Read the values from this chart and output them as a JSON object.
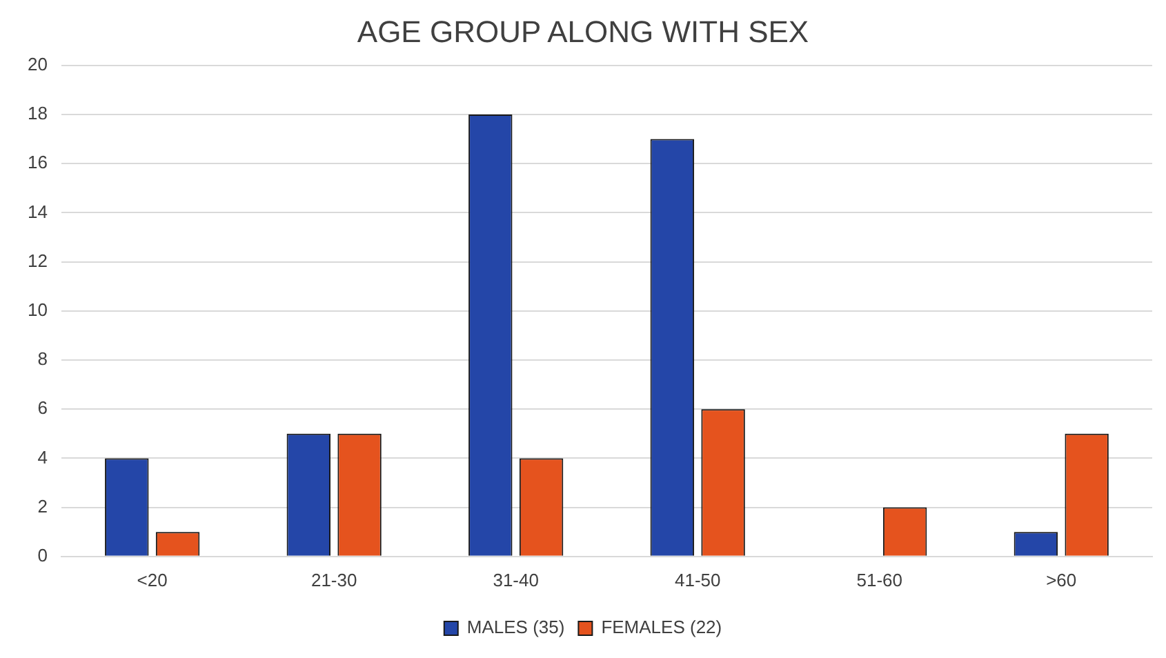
{
  "chart_data": {
    "type": "bar",
    "title": "AGE GROUP ALONG WITH SEX",
    "categories": [
      "<20",
      "21-30",
      "31-40",
      "41-50",
      "51-60",
      ">60"
    ],
    "series": [
      {
        "name": "MALES (35)",
        "color": "#2446a8",
        "values": [
          4,
          5,
          18,
          17,
          0,
          1
        ]
      },
      {
        "name": "FEMALES (22)",
        "color": "#e5531e",
        "values": [
          1,
          5,
          4,
          6,
          2,
          5
        ]
      }
    ],
    "ylim": [
      0,
      20
    ],
    "yticks": [
      0,
      2,
      4,
      6,
      8,
      10,
      12,
      14,
      16,
      18,
      20
    ],
    "grid": "y",
    "legend": "bottom"
  }
}
